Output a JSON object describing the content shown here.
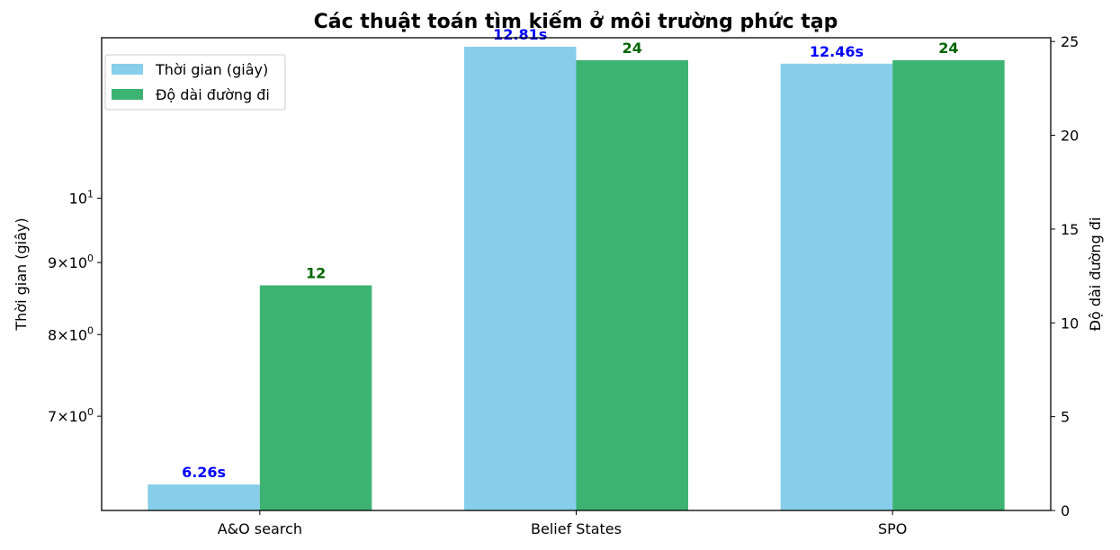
{
  "chart_data": {
    "type": "bar",
    "title": "Các thuật toán tìm kiếm ở môi trường phức tạp",
    "categories": [
      "A&O search",
      "Belief States",
      "SPO"
    ],
    "series": [
      {
        "name": "Thời gian (giây)",
        "axis": "left",
        "color": "#87CEEB",
        "label_color": "#0000FF",
        "label_suffix": "s",
        "values": [
          6.26,
          12.81,
          12.46
        ]
      },
      {
        "name": "Độ dài đường đi",
        "axis": "right",
        "color": "#3CB371",
        "label_color": "#006400",
        "label_suffix": "",
        "values": [
          12,
          24,
          24
        ]
      }
    ],
    "y_left": {
      "label": "Thời gian (giây)",
      "scale": "log",
      "ylim": [
        6.0,
        13.0
      ],
      "ticks": [
        {
          "value": 7,
          "mantissa": "7",
          "base": "10",
          "exp": "0"
        },
        {
          "value": 8,
          "mantissa": "8",
          "base": "10",
          "exp": "0"
        },
        {
          "value": 9,
          "mantissa": "9",
          "base": "10",
          "exp": "0"
        },
        {
          "value": 10,
          "mantissa": "",
          "base": "10",
          "exp": "1"
        }
      ]
    },
    "y_right": {
      "label": "Độ dài đường đi",
      "scale": "linear",
      "ylim": [
        0,
        25.2
      ],
      "ticks": [
        0,
        5,
        10,
        15,
        20,
        25
      ]
    },
    "legend_position": "upper-left",
    "grid": false
  }
}
